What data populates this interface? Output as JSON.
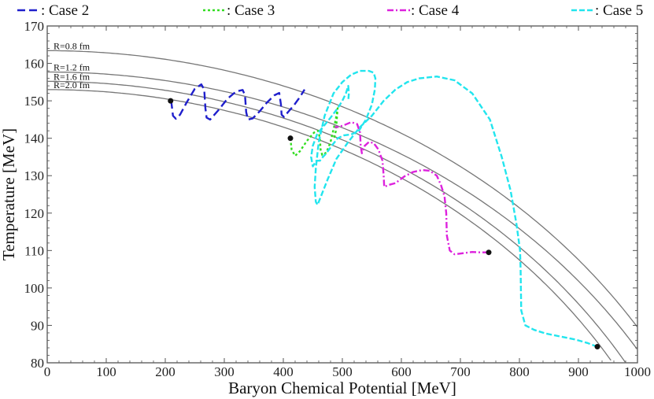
{
  "chart_data": {
    "type": "line",
    "xlabel": "Baryon Chemical Potential [MeV]",
    "ylabel": "Temperature [MeV]",
    "xlim": [
      0,
      1000
    ],
    "ylim": [
      80,
      170
    ],
    "xticks": [
      "0",
      "100",
      "200",
      "300",
      "400",
      "500",
      "600",
      "700",
      "800",
      "900",
      "1000"
    ],
    "yticks": [
      "80",
      "90",
      "100",
      "110",
      "120",
      "130",
      "140",
      "150",
      "160",
      "170"
    ],
    "legend_position": "top",
    "boundaries": [
      {
        "name": "R=0.8 fm",
        "t0": 163.4,
        "mu_end": 1000,
        "t_end": 89.5,
        "color": "#777777"
      },
      {
        "name": "R=1.2 fm",
        "t0": 157.7,
        "mu_end": 1000,
        "t_end": 83.5,
        "color": "#777777"
      },
      {
        "name": "R=1.6 fm",
        "t0": 155.2,
        "mu_end": 980,
        "t_end": 80.0,
        "color": "#777777"
      },
      {
        "name": "R=2.0 fm",
        "t0": 153.0,
        "mu_end": 958,
        "t_end": 80.0,
        "color": "#777777"
      }
    ],
    "series": [
      {
        "name": ": Case 2",
        "color": "#1f1fcc",
        "dash": "10,5",
        "points": [
          [
            210,
            150
          ],
          [
            213,
            146
          ],
          [
            218,
            145.2
          ],
          [
            225,
            146.3
          ],
          [
            236,
            149.5
          ],
          [
            250,
            153.2
          ],
          [
            261,
            154.4
          ],
          [
            266,
            153
          ],
          [
            268,
            148
          ],
          [
            270,
            145.5
          ],
          [
            276,
            145
          ],
          [
            290,
            147.5
          ],
          [
            305,
            150.5
          ],
          [
            320,
            152.5
          ],
          [
            331,
            152.9
          ],
          [
            335,
            151.5
          ],
          [
            337,
            147
          ],
          [
            340,
            145
          ],
          [
            348,
            145.3
          ],
          [
            360,
            147.2
          ],
          [
            372,
            149.5
          ],
          [
            385,
            151.5
          ],
          [
            393,
            152.1
          ],
          [
            396,
            149
          ],
          [
            397,
            146.3
          ],
          [
            401,
            145.7
          ],
          [
            408,
            147
          ],
          [
            418,
            148.8
          ],
          [
            428,
            151
          ],
          [
            436,
            153
          ]
        ]
      },
      {
        "name": ": Case 3",
        "color": "#33dd22",
        "dash": "3,3",
        "points": [
          [
            412,
            140
          ],
          [
            414,
            137
          ],
          [
            420,
            135.3
          ],
          [
            428,
            136.5
          ],
          [
            440,
            139.3
          ],
          [
            452,
            141.5
          ],
          [
            459,
            142
          ],
          [
            462,
            140
          ],
          [
            463,
            137
          ],
          [
            466,
            135.5
          ],
          [
            473,
            136.2
          ],
          [
            480,
            139
          ],
          [
            486,
            143
          ],
          [
            490,
            146
          ],
          [
            492,
            148
          ],
          [
            491,
            146
          ],
          [
            489,
            142
          ],
          [
            486,
            140
          ]
        ]
      },
      {
        "name": ": Case 4",
        "color": "#dd22dd",
        "dash": "8,3,2,3",
        "points": [
          [
            748,
            109.5
          ],
          [
            735,
            109.5
          ],
          [
            720,
            109.6
          ],
          [
            705,
            109.3
          ],
          [
            690,
            109
          ],
          [
            682,
            110
          ],
          [
            677,
            114
          ],
          [
            676,
            120
          ],
          [
            673,
            124.5
          ],
          [
            667,
            127.5
          ],
          [
            660,
            130
          ],
          [
            648,
            131.3
          ],
          [
            635,
            131.5
          ],
          [
            620,
            131
          ],
          [
            605,
            129.8
          ],
          [
            590,
            128
          ],
          [
            578,
            127.5
          ],
          [
            571,
            127
          ],
          [
            570,
            130
          ],
          [
            568,
            134
          ],
          [
            561,
            137
          ],
          [
            553,
            138.7
          ],
          [
            545,
            139
          ],
          [
            538,
            138
          ],
          [
            533,
            136
          ],
          [
            531,
            138
          ],
          [
            530,
            141.5
          ],
          [
            525,
            143.8
          ],
          [
            515,
            144.3
          ],
          [
            503,
            143.5
          ],
          [
            493,
            143
          ],
          [
            487,
            143
          ]
        ]
      },
      {
        "name": ": Case 5",
        "color": "#22e5ee",
        "dash": "7,3",
        "points": [
          [
            932,
            84.3
          ],
          [
            915,
            85.3
          ],
          [
            895,
            86.2
          ],
          [
            870,
            87
          ],
          [
            845,
            87.8
          ],
          [
            825,
            88.8
          ],
          [
            810,
            90
          ],
          [
            803,
            94
          ],
          [
            802,
            105
          ],
          [
            801,
            110
          ],
          [
            795,
            117
          ],
          [
            785,
            126
          ],
          [
            770,
            135
          ],
          [
            750,
            145
          ],
          [
            720,
            152
          ],
          [
            690,
            155.5
          ],
          [
            660,
            156.5
          ],
          [
            630,
            156
          ],
          [
            610,
            155
          ],
          [
            590,
            153
          ],
          [
            570,
            150
          ],
          [
            550,
            146
          ],
          [
            530,
            143
          ],
          [
            510,
            139
          ],
          [
            490,
            134.5
          ],
          [
            475,
            129
          ],
          [
            465,
            125
          ],
          [
            458,
            122.2
          ],
          [
            455,
            123
          ],
          [
            453,
            127
          ],
          [
            455,
            132
          ],
          [
            460,
            139
          ],
          [
            470,
            146
          ],
          [
            485,
            152
          ],
          [
            500,
            155
          ],
          [
            515,
            157
          ],
          [
            530,
            158
          ],
          [
            545,
            158
          ],
          [
            553,
            157.5
          ],
          [
            556,
            156
          ],
          [
            555,
            153
          ],
          [
            550,
            149
          ],
          [
            540,
            145
          ],
          [
            528,
            142
          ],
          [
            515,
            141
          ],
          [
            503,
            140.8
          ],
          [
            492,
            140
          ],
          [
            482,
            138
          ],
          [
            473,
            136
          ],
          [
            467,
            135
          ],
          [
            462,
            134
          ],
          [
            456,
            134
          ],
          [
            450,
            132.5
          ],
          [
            447,
            135
          ],
          [
            450,
            138
          ],
          [
            457,
            141
          ],
          [
            467,
            143
          ],
          [
            480,
            145.5
          ],
          [
            492,
            148
          ],
          [
            500,
            150
          ],
          [
            506,
            152
          ],
          [
            510,
            154
          ],
          [
            511,
            152
          ],
          [
            510,
            150
          ]
        ]
      }
    ],
    "markers": [
      [
        209,
        150
      ],
      [
        412,
        140
      ],
      [
        748,
        109.5
      ],
      [
        932,
        84.3
      ]
    ]
  }
}
